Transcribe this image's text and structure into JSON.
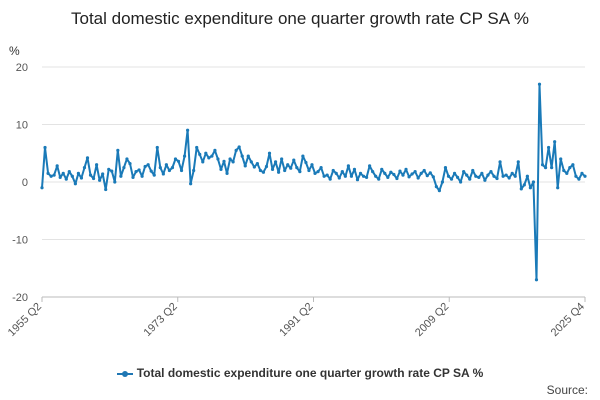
{
  "chart_data": {
    "type": "line",
    "title": "Total domestic expenditure one quarter growth rate CP SA %",
    "ylabel": "%",
    "xlabel": "",
    "ylim": [
      -20,
      20
    ],
    "yticks": [
      -20,
      -10,
      0,
      10,
      20
    ],
    "x_ticks": [
      "1955 Q2",
      "1973 Q2",
      "1991 Q2",
      "2009 Q2",
      "2025 Q4"
    ],
    "start_period": "1955 Q2",
    "end_period": "2025 Q4",
    "series": [
      {
        "name": "Total domestic expenditure one quarter growth rate CP SA %",
        "color": "#1a7ab8",
        "values": [
          -1.0,
          6.0,
          1.5,
          1.0,
          1.2,
          2.8,
          0.8,
          1.5,
          0.5,
          1.8,
          1.0,
          -0.3,
          1.5,
          0.7,
          2.5,
          4.2,
          1.2,
          0.6,
          3.0,
          0.3,
          1.4,
          -1.3,
          2.2,
          1.9,
          0.0,
          5.5,
          1.0,
          2.5,
          4.0,
          3.2,
          0.8,
          1.8,
          2.1,
          1.0,
          2.7,
          3.0,
          1.9,
          1.2,
          6.0,
          2.5,
          1.4,
          3.0,
          2.0,
          2.5,
          4.0,
          3.6,
          2.0,
          4.5,
          9.0,
          -0.3,
          2.0,
          6.0,
          4.8,
          3.5,
          5.0,
          4.2,
          4.5,
          5.5,
          4.0,
          2.2,
          3.6,
          1.5,
          4.0,
          3.5,
          5.5,
          6.1,
          4.5,
          2.8,
          4.5,
          3.5,
          2.6,
          3.2,
          2.0,
          1.7,
          2.7,
          5.0,
          2.2,
          3.5,
          1.7,
          4.0,
          2.0,
          3.0,
          2.4,
          3.8,
          2.5,
          1.8,
          4.5,
          3.4,
          2.0,
          3.0,
          1.5,
          1.8,
          2.5,
          1.0,
          1.2,
          0.5,
          2.0,
          1.5,
          0.7,
          1.8,
          1.0,
          2.8,
          1.0,
          2.2,
          0.4,
          1.5,
          1.0,
          0.8,
          2.8,
          1.8,
          1.0,
          0.5,
          2.2,
          1.5,
          0.8,
          1.7,
          1.3,
          0.6,
          1.9,
          1.2,
          2.2,
          0.9,
          1.4,
          1.8,
          0.7,
          1.5,
          2.0,
          1.1,
          1.6,
          0.9,
          -0.8,
          -1.5,
          0.0,
          2.5,
          1.0,
          0.5,
          1.5,
          0.8,
          0.0,
          1.8,
          1.2,
          0.5,
          2.0,
          1.0,
          0.8,
          1.5,
          0.3,
          1.2,
          1.8,
          1.0,
          0.6,
          3.5,
          1.0,
          1.2,
          0.7,
          1.5,
          1.0,
          3.5,
          -1.2,
          -0.5,
          1.0,
          -1.0,
          0.0,
          -17.0,
          17.0,
          3.0,
          2.5,
          6.0,
          2.5,
          7.0,
          -1.0,
          4.0,
          2.0,
          1.5,
          2.5,
          3.0,
          1.0,
          0.5,
          1.5,
          1.0
        ]
      }
    ]
  },
  "legend_label": "Total domestic expenditure one quarter growth rate CP SA %",
  "source_label": "Source:"
}
